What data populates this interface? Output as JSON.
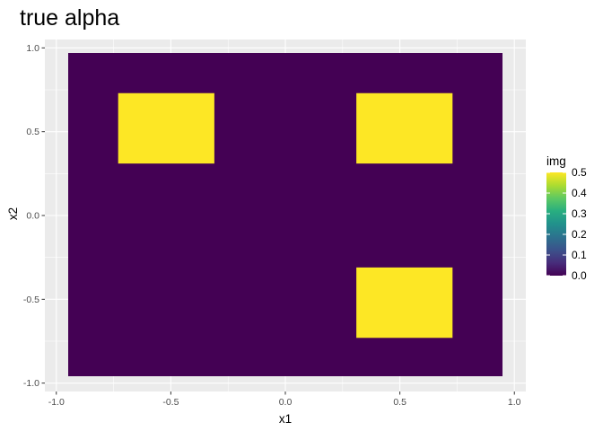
{
  "chart_data": {
    "type": "heatmap",
    "title": "true alpha",
    "xlabel": "x1",
    "ylabel": "x2",
    "xlim": [
      -1.05,
      1.05
    ],
    "ylim": [
      -1.05,
      1.05
    ],
    "x_ticks": [
      -1.0,
      -0.5,
      0.0,
      0.5,
      1.0
    ],
    "y_ticks": [
      -1.0,
      -0.5,
      0.0,
      0.5,
      1.0
    ],
    "x_tick_labels": [
      "-1.0",
      "-0.5",
      "0.0",
      "0.5",
      "1.0"
    ],
    "y_tick_labels": [
      "-1.0",
      "-0.5",
      "0.0",
      "0.5",
      "1.0"
    ],
    "background_value": 0.0,
    "regions": [
      {
        "x": [
          -0.73,
          -0.31
        ],
        "y": [
          0.31,
          0.73
        ],
        "value": 0.5
      },
      {
        "x": [
          0.31,
          0.73
        ],
        "y": [
          0.31,
          0.73
        ],
        "value": 0.5
      },
      {
        "x": [
          0.31,
          0.73
        ],
        "y": [
          -0.73,
          -0.31
        ],
        "value": 0.5
      }
    ],
    "grid": true,
    "legend": {
      "title": "img",
      "position": "right",
      "ticks": [
        0.0,
        0.1,
        0.2,
        0.3,
        0.4,
        0.5
      ],
      "tick_labels": [
        "0.0",
        "0.1",
        "0.2",
        "0.3",
        "0.4",
        "0.5"
      ],
      "range": [
        0.0,
        0.5
      ]
    },
    "colormap": "viridis",
    "colors": {
      "low": "#440154",
      "high": "#FDE725",
      "panel_background": "#EBEBEB",
      "gridline": "#FFFFFF"
    }
  }
}
